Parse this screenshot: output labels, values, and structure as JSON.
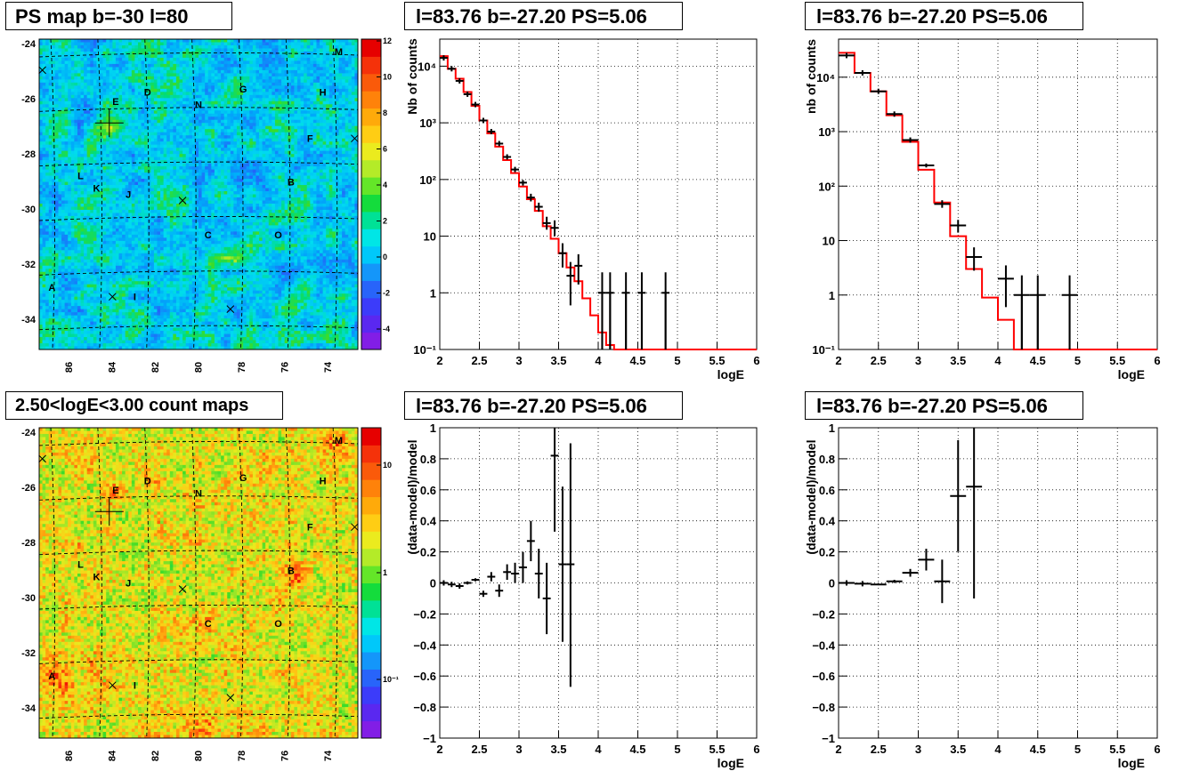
{
  "titles": {
    "ps_map": "PS map b=-30 l=80",
    "spectrum_left": "l=83.76 b=-27.20 PS=5.06",
    "spectrum_right": "l=83.76 b=-27.20 PS=5.06",
    "count_map": "2.50<logE<3.00 count maps",
    "residual_left": "l=83.76 b=-27.20 PS=5.06",
    "residual_right": "l=83.76 b=-27.20 PS=5.06"
  },
  "colors": {
    "model_line": "#ff0000",
    "data_points": "#000000",
    "grid": "#000000"
  },
  "chart_data": [
    {
      "id": "ps_map",
      "type": "heatmap",
      "title": "PS map b=-30 l=80",
      "x_ticks": [
        "86",
        "84",
        "82",
        "80",
        "78",
        "76",
        "74"
      ],
      "y_ticks": [
        "-24",
        "-26",
        "-28",
        "-30",
        "-32",
        "-34"
      ],
      "colorbar_ticks": [
        "12",
        "10",
        "8",
        "6",
        "4",
        "2",
        "0",
        "-2",
        "-4"
      ],
      "zlim": [
        -5,
        12
      ],
      "labels": [
        "M",
        "E",
        "D",
        "G",
        "H",
        "N",
        "F",
        "L",
        "K",
        "J",
        "B",
        "C",
        "O",
        "A",
        "I"
      ]
    },
    {
      "id": "count_map",
      "type": "heatmap",
      "title": "2.50<logE<3.00 count maps",
      "x_ticks": [
        "86",
        "84",
        "82",
        "80",
        "78",
        "76",
        "74"
      ],
      "y_ticks": [
        "-24",
        "-26",
        "-28",
        "-30",
        "-32",
        "-34"
      ],
      "colorbar_ticks": [
        "10",
        "1",
        "10⁻¹"
      ],
      "log_z": true,
      "labels": [
        "M",
        "E",
        "D",
        "G",
        "H",
        "N",
        "F",
        "L",
        "K",
        "J",
        "B",
        "C",
        "O",
        "A",
        "I"
      ]
    },
    {
      "id": "spectrum_left",
      "type": "line",
      "title": "l=83.76 b=-27.20 PS=5.06",
      "xlabel": "logE",
      "ylabel": "Nb of counts",
      "xlim": [
        2,
        6
      ],
      "ylim": [
        0.1,
        30000
      ],
      "log_y": true,
      "x_ticks": [
        "2",
        "2.5",
        "3",
        "3.5",
        "4",
        "4.5",
        "5",
        "5.5",
        "6"
      ],
      "y_ticks": [
        "10⁻¹",
        "1",
        "10",
        "10²",
        "10³",
        "10⁴"
      ],
      "model_edges": [
        2.0,
        2.1,
        2.2,
        2.3,
        2.4,
        2.5,
        2.6,
        2.7,
        2.8,
        2.9,
        3.0,
        3.1,
        3.2,
        3.3,
        3.4,
        3.5,
        3.6,
        3.7,
        3.8,
        3.9,
        4.0,
        4.1,
        4.2,
        6.0
      ],
      "model_values": [
        15000,
        9000,
        6000,
        3500,
        2000,
        1100,
        650,
        380,
        220,
        130,
        75,
        45,
        28,
        15,
        9,
        5,
        2.8,
        1.6,
        0.8,
        0.4,
        0.2,
        0.12,
        0.1
      ],
      "data": [
        {
          "x": 2.05,
          "y": 14000,
          "dx": 0.05,
          "lo": 0,
          "hi": 0
        },
        {
          "x": 2.15,
          "y": 9000,
          "dx": 0.05,
          "lo": 0,
          "hi": 0
        },
        {
          "x": 2.25,
          "y": 5500,
          "dx": 0.05,
          "lo": 0,
          "hi": 0
        },
        {
          "x": 2.35,
          "y": 3200,
          "dx": 0.05,
          "lo": 0,
          "hi": 0
        },
        {
          "x": 2.45,
          "y": 2100,
          "dx": 0.05,
          "lo": 0,
          "hi": 0
        },
        {
          "x": 2.55,
          "y": 1100,
          "dx": 0.05,
          "lo": 0,
          "hi": 0
        },
        {
          "x": 2.65,
          "y": 700,
          "dx": 0.05,
          "lo": 0,
          "hi": 0
        },
        {
          "x": 2.75,
          "y": 430,
          "dx": 0.05,
          "lo": 0,
          "hi": 0
        },
        {
          "x": 2.85,
          "y": 250,
          "dx": 0.05,
          "lo": 0,
          "hi": 0
        },
        {
          "x": 2.95,
          "y": 150,
          "dx": 0.05,
          "lo": 0,
          "hi": 0
        },
        {
          "x": 3.05,
          "y": 88,
          "dx": 0.05,
          "lo": 78,
          "hi": 98
        },
        {
          "x": 3.15,
          "y": 48,
          "dx": 0.05,
          "lo": 41,
          "hi": 56
        },
        {
          "x": 3.25,
          "y": 33,
          "dx": 0.05,
          "lo": 27,
          "hi": 39
        },
        {
          "x": 3.35,
          "y": 17,
          "dx": 0.05,
          "lo": 13,
          "hi": 22
        },
        {
          "x": 3.45,
          "y": 14,
          "dx": 0.05,
          "lo": 10,
          "hi": 19
        },
        {
          "x": 3.55,
          "y": 5,
          "dx": 0.05,
          "lo": 2.8,
          "hi": 7.5
        },
        {
          "x": 3.65,
          "y": 2,
          "dx": 0.05,
          "lo": 0.6,
          "hi": 3.5
        },
        {
          "x": 3.75,
          "y": 3,
          "dx": 0.05,
          "lo": 1.4,
          "hi": 4.8
        },
        {
          "x": 4.05,
          "y": 1,
          "dx": 0.05,
          "lo": 0.1,
          "hi": 2.3
        },
        {
          "x": 4.15,
          "y": 1,
          "dx": 0.05,
          "lo": 0.1,
          "hi": 2.3
        },
        {
          "x": 4.35,
          "y": 1,
          "dx": 0.05,
          "lo": 0.1,
          "hi": 2.3
        },
        {
          "x": 4.55,
          "y": 1,
          "dx": 0.05,
          "lo": 0.1,
          "hi": 2.3
        },
        {
          "x": 4.85,
          "y": 1,
          "dx": 0.05,
          "lo": 0.1,
          "hi": 2.3
        }
      ]
    },
    {
      "id": "spectrum_right",
      "type": "line",
      "title": "l=83.76 b=-27.20 PS=5.06",
      "xlabel": "logE",
      "ylabel": "nb of counts",
      "xlim": [
        2,
        6
      ],
      "ylim": [
        0.1,
        50000
      ],
      "log_y": true,
      "x_ticks": [
        "2",
        "2.5",
        "3",
        "3.5",
        "4",
        "4.5",
        "5",
        "5.5",
        "6"
      ],
      "y_ticks": [
        "10⁻¹",
        "1",
        "10",
        "10²",
        "10³",
        "10⁴"
      ],
      "model_edges": [
        2.0,
        2.2,
        2.4,
        2.6,
        2.8,
        3.0,
        3.2,
        3.4,
        3.6,
        3.8,
        4.0,
        4.2,
        6.0
      ],
      "model_values": [
        28000,
        12000,
        5500,
        2000,
        650,
        200,
        50,
        12,
        3,
        0.9,
        0.35,
        0.1
      ],
      "data": [
        {
          "x": 2.1,
          "y": 25000,
          "dx": 0.1,
          "lo": 0,
          "hi": 0
        },
        {
          "x": 2.3,
          "y": 12000,
          "dx": 0.1,
          "lo": 0,
          "hi": 0
        },
        {
          "x": 2.5,
          "y": 5500,
          "dx": 0.1,
          "lo": 0,
          "hi": 0
        },
        {
          "x": 2.7,
          "y": 2100,
          "dx": 0.1,
          "lo": 0,
          "hi": 0
        },
        {
          "x": 2.9,
          "y": 700,
          "dx": 0.1,
          "lo": 0,
          "hi": 0
        },
        {
          "x": 3.1,
          "y": 240,
          "dx": 0.1,
          "lo": 220,
          "hi": 260
        },
        {
          "x": 3.3,
          "y": 47,
          "dx": 0.1,
          "lo": 40,
          "hi": 55
        },
        {
          "x": 3.5,
          "y": 19,
          "dx": 0.1,
          "lo": 14,
          "hi": 24
        },
        {
          "x": 3.7,
          "y": 5,
          "dx": 0.1,
          "lo": 2.8,
          "hi": 7.5
        },
        {
          "x": 4.1,
          "y": 2,
          "dx": 0.1,
          "lo": 0.6,
          "hi": 3.5
        },
        {
          "x": 4.3,
          "y": 1,
          "dx": 0.1,
          "lo": 0.1,
          "hi": 2.3
        },
        {
          "x": 4.5,
          "y": 1,
          "dx": 0.1,
          "lo": 0.1,
          "hi": 2.3
        },
        {
          "x": 4.9,
          "y": 1,
          "dx": 0.1,
          "lo": 0.1,
          "hi": 2.3
        }
      ]
    },
    {
      "id": "residual_left",
      "type": "scatter",
      "title": "l=83.76 b=-27.20 PS=5.06",
      "xlabel": "logE",
      "ylabel": "(data-model)/model",
      "xlim": [
        2,
        6
      ],
      "ylim": [
        -1,
        1
      ],
      "x_ticks": [
        "2",
        "2.5",
        "3",
        "3.5",
        "4",
        "4.5",
        "5",
        "5.5",
        "6"
      ],
      "y_ticks": [
        "−1",
        "−0.8",
        "−0.6",
        "−0.4",
        "−0.2",
        "0",
        "0.2",
        "0.4",
        "0.6",
        "0.8",
        "1"
      ],
      "data": [
        {
          "x": 2.05,
          "y": 0.0,
          "dx": 0.05,
          "lo": 0.0,
          "hi": 0.0
        },
        {
          "x": 2.15,
          "y": -0.01,
          "dx": 0.05,
          "lo": -0.01,
          "hi": -0.01
        },
        {
          "x": 2.25,
          "y": -0.02,
          "dx": 0.05,
          "lo": -0.02,
          "hi": -0.02
        },
        {
          "x": 2.35,
          "y": 0.0,
          "dx": 0.05,
          "lo": -0.01,
          "hi": 0.01
        },
        {
          "x": 2.45,
          "y": 0.02,
          "dx": 0.05,
          "lo": 0.01,
          "hi": 0.03
        },
        {
          "x": 2.55,
          "y": -0.07,
          "dx": 0.05,
          "lo": -0.09,
          "hi": -0.05
        },
        {
          "x": 2.65,
          "y": 0.04,
          "dx": 0.05,
          "lo": 0.01,
          "hi": 0.07
        },
        {
          "x": 2.75,
          "y": -0.05,
          "dx": 0.05,
          "lo": -0.09,
          "hi": -0.01
        },
        {
          "x": 2.85,
          "y": 0.07,
          "dx": 0.05,
          "lo": 0.02,
          "hi": 0.12
        },
        {
          "x": 2.95,
          "y": 0.06,
          "dx": 0.05,
          "lo": 0.0,
          "hi": 0.13
        },
        {
          "x": 3.05,
          "y": 0.1,
          "dx": 0.05,
          "lo": 0.0,
          "hi": 0.2
        },
        {
          "x": 3.15,
          "y": 0.27,
          "dx": 0.05,
          "lo": 0.14,
          "hi": 0.4
        },
        {
          "x": 3.25,
          "y": 0.06,
          "dx": 0.05,
          "lo": -0.1,
          "hi": 0.22
        },
        {
          "x": 3.35,
          "y": -0.1,
          "dx": 0.05,
          "lo": -0.33,
          "hi": 0.13
        },
        {
          "x": 3.45,
          "y": 0.82,
          "dx": 0.05,
          "lo": 0.33,
          "hi": 1.0
        },
        {
          "x": 3.55,
          "y": 0.12,
          "dx": 0.05,
          "lo": -0.38,
          "hi": 0.62
        },
        {
          "x": 3.65,
          "y": 0.12,
          "dx": 0.05,
          "lo": -0.67,
          "hi": 0.9
        }
      ]
    },
    {
      "id": "residual_right",
      "type": "scatter",
      "title": "l=83.76 b=-27.20 PS=5.06",
      "xlabel": "logE",
      "ylabel": "(data-model)/model",
      "xlim": [
        2,
        6
      ],
      "ylim": [
        -1,
        1
      ],
      "x_ticks": [
        "2",
        "2.5",
        "3",
        "3.5",
        "4",
        "4.5",
        "5",
        "5.5",
        "6"
      ],
      "y_ticks": [
        "−1",
        "−0.8",
        "−0.6",
        "−0.4",
        "−0.2",
        "0",
        "0.2",
        "0.4",
        "0.6",
        "0.8",
        "1"
      ],
      "data": [
        {
          "x": 2.1,
          "y": 0.0,
          "dx": 0.1,
          "lo": 0.0,
          "hi": 0.0
        },
        {
          "x": 2.3,
          "y": -0.005,
          "dx": 0.1,
          "lo": -0.005,
          "hi": -0.005
        },
        {
          "x": 2.5,
          "y": -0.01,
          "dx": 0.1,
          "lo": -0.015,
          "hi": -0.005
        },
        {
          "x": 2.7,
          "y": 0.01,
          "dx": 0.1,
          "lo": 0.0,
          "hi": 0.02
        },
        {
          "x": 2.9,
          "y": 0.065,
          "dx": 0.1,
          "lo": 0.04,
          "hi": 0.09
        },
        {
          "x": 3.1,
          "y": 0.15,
          "dx": 0.1,
          "lo": 0.08,
          "hi": 0.22
        },
        {
          "x": 3.3,
          "y": 0.01,
          "dx": 0.1,
          "lo": -0.13,
          "hi": 0.15
        },
        {
          "x": 3.5,
          "y": 0.56,
          "dx": 0.1,
          "lo": 0.2,
          "hi": 0.92
        },
        {
          "x": 3.7,
          "y": 0.62,
          "dx": 0.1,
          "lo": -0.1,
          "hi": 1.0
        }
      ]
    }
  ]
}
